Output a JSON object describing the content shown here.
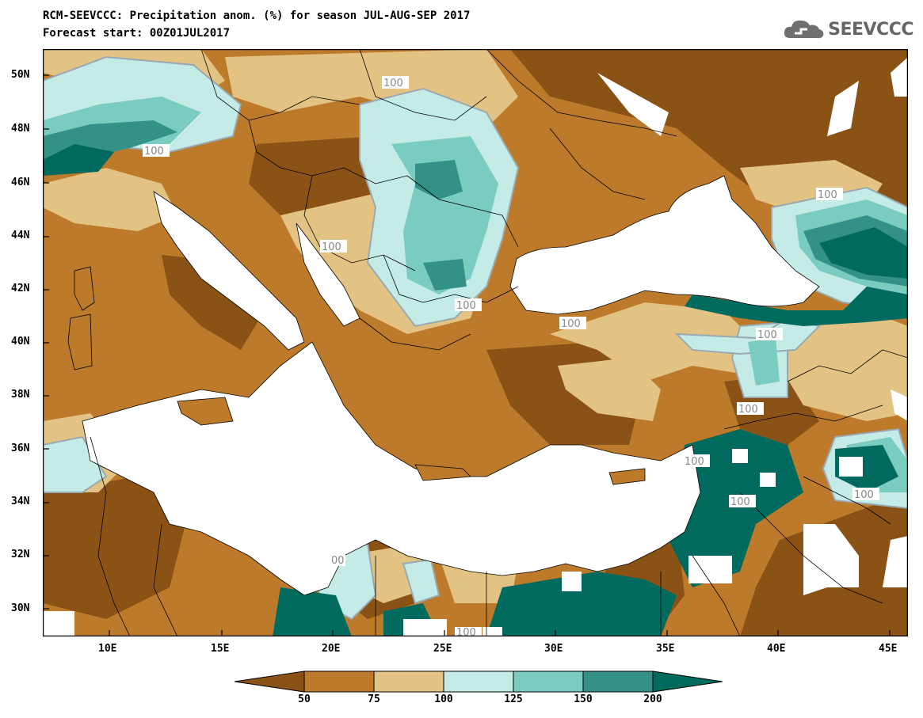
{
  "header": {
    "title_line1": "RCM-SEEVCCC: Precipitation anom. (%) for season JUL-AUG-SEP 2017",
    "title_line2": "Forecast start: 00Z01JUL2017",
    "logo_text": "SEEVCCC"
  },
  "map": {
    "lat_labels": [
      "50N",
      "48N",
      "46N",
      "44N",
      "42N",
      "40N",
      "38N",
      "36N",
      "34N",
      "32N",
      "30N"
    ],
    "lon_labels": [
      "10E",
      "15E",
      "20E",
      "25E",
      "30E",
      "35E",
      "40E",
      "45E"
    ],
    "contour_labels": [
      "100",
      "100",
      "100",
      "100",
      "100",
      "100",
      "100",
      "100",
      "100",
      "100",
      "100",
      "00",
      "100"
    ]
  },
  "colorbar": {
    "labels": [
      "50",
      "75",
      "100",
      "125",
      "150",
      "200"
    ],
    "colors": [
      "#8a5214",
      "#bd7a2b",
      "#e3c384",
      "#c5ebe6",
      "#7bccc0",
      "#339188",
      "#006a5e"
    ]
  }
}
